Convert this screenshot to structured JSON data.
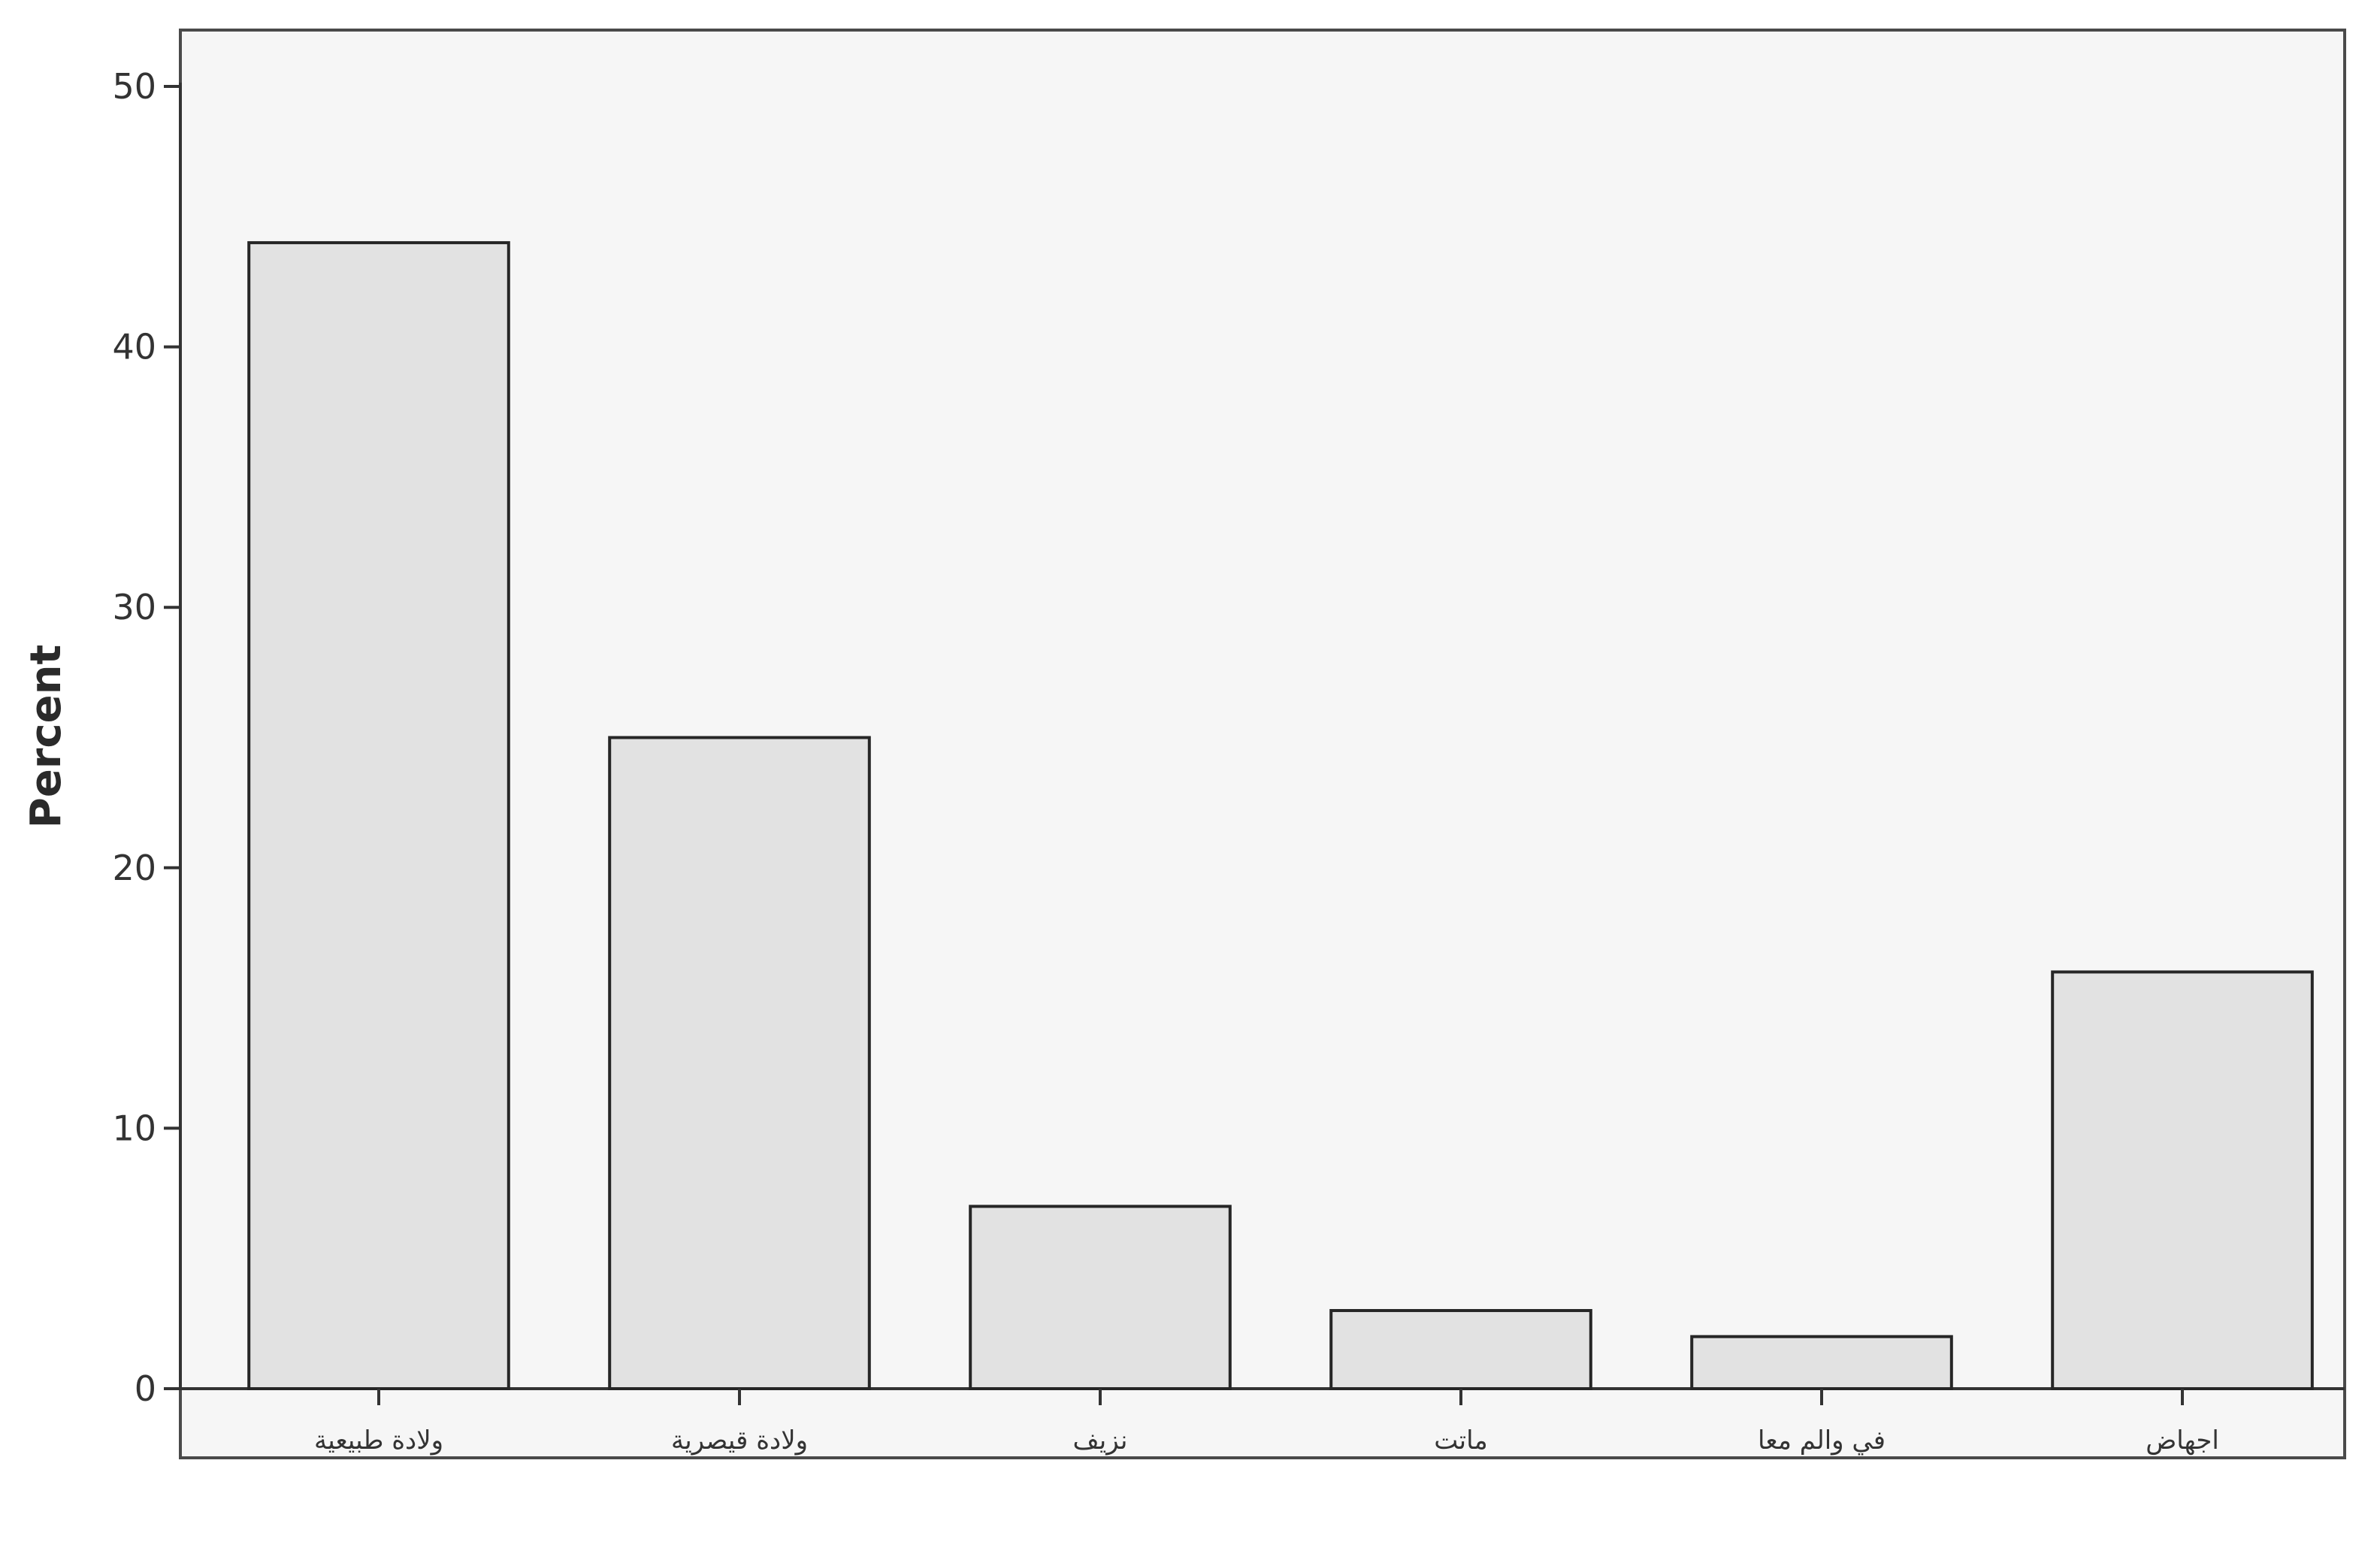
{
  "chart_data": {
    "type": "bar",
    "title": "",
    "xlabel": "",
    "ylabel": "Percent",
    "ylim": [
      0,
      50
    ],
    "yticks": [
      0,
      10,
      20,
      30,
      40,
      50
    ],
    "categories": [
      "ولادة طبيعية",
      "ولادة قيصرية",
      "نزيف",
      "ماتت",
      "في والم معا",
      "اجهاض"
    ],
    "values": [
      44,
      25,
      7,
      3,
      2,
      16
    ],
    "grid": false,
    "colors": {
      "bar_fill": "#e2e2e2",
      "bar_stroke": "#262626",
      "background": "#f6f6f6"
    }
  }
}
